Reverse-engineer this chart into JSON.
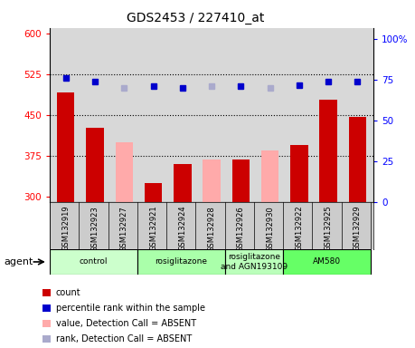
{
  "title": "GDS2453 / 227410_at",
  "samples": [
    "GSM132919",
    "GSM132923",
    "GSM132927",
    "GSM132921",
    "GSM132924",
    "GSM132928",
    "GSM132926",
    "GSM132930",
    "GSM132922",
    "GSM132925",
    "GSM132929"
  ],
  "bar_values": [
    492,
    427,
    null,
    325,
    360,
    null,
    368,
    null,
    395,
    478,
    447
  ],
  "bar_absent_values": [
    null,
    null,
    400,
    null,
    null,
    368,
    null,
    385,
    null,
    null,
    null
  ],
  "rank_values": [
    76,
    74,
    null,
    71,
    70,
    null,
    71,
    null,
    72,
    74,
    74
  ],
  "rank_absent_values": [
    null,
    null,
    70,
    null,
    null,
    71,
    null,
    70,
    null,
    null,
    null
  ],
  "bar_color": "#cc0000",
  "bar_absent_color": "#ffaaaa",
  "rank_color": "#0000cc",
  "rank_absent_color": "#aaaacc",
  "ylim_left": [
    290,
    610
  ],
  "ylim_right": [
    0,
    107
  ],
  "yticks_left": [
    300,
    375,
    450,
    525,
    600
  ],
  "yticks_right": [
    0,
    25,
    50,
    75,
    100
  ],
  "ytick_labels_right": [
    "0",
    "25",
    "50",
    "75",
    "100%"
  ],
  "groups": [
    {
      "label": "control",
      "start": 0,
      "end": 3,
      "color": "#ccffcc"
    },
    {
      "label": "rosiglitazone",
      "start": 3,
      "end": 6,
      "color": "#aaffaa"
    },
    {
      "label": "rosiglitazone\nand AGN193109",
      "start": 6,
      "end": 8,
      "color": "#bbffbb"
    },
    {
      "label": "AM580",
      "start": 8,
      "end": 11,
      "color": "#66ff66"
    }
  ],
  "agent_label": "agent",
  "legend_items": [
    {
      "label": "count",
      "color": "#cc0000",
      "marker": "s"
    },
    {
      "label": "percentile rank within the sample",
      "color": "#0000cc",
      "marker": "s"
    },
    {
      "label": "value, Detection Call = ABSENT",
      "color": "#ffaaaa",
      "marker": "s"
    },
    {
      "label": "rank, Detection Call = ABSENT",
      "color": "#aaaacc",
      "marker": "s"
    }
  ],
  "plot_bg": "#d8d8d8",
  "bar_width": 0.6,
  "dotted_lines": [
    375,
    450,
    525
  ],
  "marker_size": 5,
  "fig_width": 4.59,
  "fig_height": 3.84
}
